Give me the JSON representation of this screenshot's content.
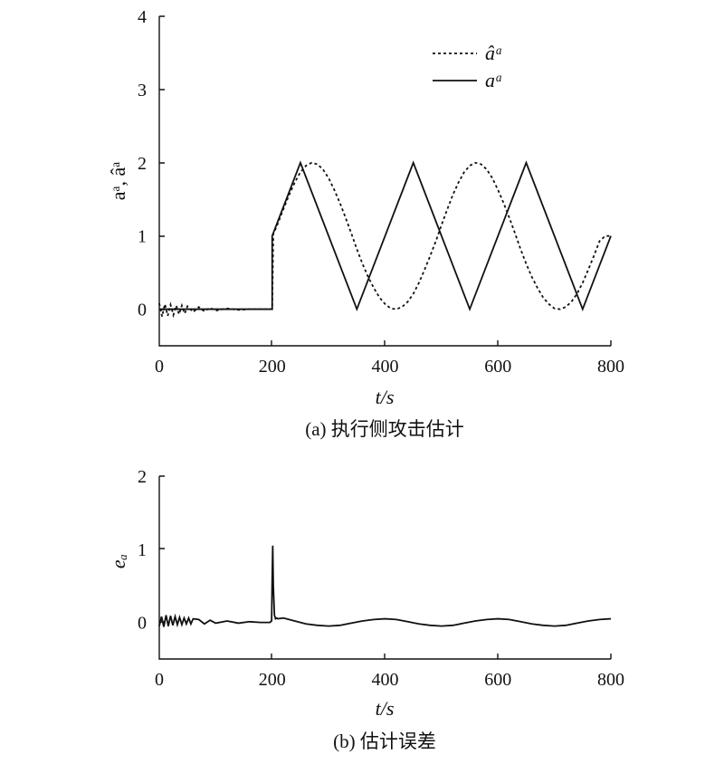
{
  "chart_data": [
    {
      "type": "line",
      "caption": "(a) 执行侧攻击估计",
      "xlabel": "t/s",
      "ylabel": "aᵃ, âᵃ",
      "xlim": [
        0,
        800
      ],
      "ylim": [
        -0.5,
        4
      ],
      "xticks": [
        "0",
        "200",
        "400",
        "600",
        "800"
      ],
      "yticks": [
        "0",
        "1",
        "2",
        "3",
        "4"
      ],
      "grid": false,
      "legend_position": "top-right",
      "series": [
        {
          "name": "âᵃ",
          "style": "dashed",
          "x": [
            0,
            5,
            10,
            15,
            20,
            25,
            30,
            35,
            40,
            45,
            50,
            60,
            70,
            80,
            90,
            100,
            120,
            140,
            160,
            180,
            199,
            200,
            202,
            205,
            210,
            220,
            230,
            240,
            250,
            260,
            270,
            280,
            290,
            300,
            310,
            320,
            330,
            340,
            350,
            360,
            370,
            380,
            390,
            400,
            410,
            420,
            430,
            440,
            450,
            460,
            470,
            480,
            490,
            500,
            510,
            520,
            530,
            540,
            550,
            560,
            570,
            580,
            590,
            600,
            610,
            620,
            630,
            640,
            650,
            660,
            670,
            680,
            690,
            700,
            710,
            720,
            730,
            740,
            750,
            760,
            770,
            780,
            790,
            800
          ],
          "y": [
            0.08,
            -0.1,
            0.07,
            -0.09,
            0.06,
            -0.08,
            0.05,
            -0.07,
            0.05,
            -0.06,
            0.04,
            -0.04,
            0.03,
            -0.03,
            0.02,
            -0.02,
            0.01,
            -0.01,
            0.0,
            0.0,
            0.0,
            0.0,
            1.03,
            1.08,
            1.17,
            1.37,
            1.56,
            1.73,
            1.87,
            1.96,
            2.0,
            1.98,
            1.91,
            1.79,
            1.63,
            1.45,
            1.25,
            1.04,
            0.82,
            0.62,
            0.44,
            0.29,
            0.16,
            0.07,
            0.01,
            0.0,
            0.03,
            0.1,
            0.21,
            0.36,
            0.54,
            0.73,
            0.93,
            1.15,
            1.36,
            1.56,
            1.73,
            1.87,
            1.96,
            2.0,
            1.98,
            1.91,
            1.79,
            1.63,
            1.45,
            1.25,
            1.04,
            0.82,
            0.62,
            0.44,
            0.29,
            0.16,
            0.07,
            0.01,
            0.0,
            0.03,
            0.1,
            0.21,
            0.36,
            0.54,
            0.73,
            0.93,
            1.0,
            1.0
          ]
        },
        {
          "name": "aᵃ",
          "style": "solid",
          "x": [
            0,
            200,
            200,
            250,
            300,
            350,
            400,
            450,
            500,
            550,
            600,
            650,
            700,
            750,
            800
          ],
          "y": [
            0,
            0,
            1,
            2,
            1,
            0,
            1,
            2,
            1,
            0,
            1,
            2,
            1,
            0,
            1
          ]
        }
      ]
    },
    {
      "type": "line",
      "caption": "(b) 估计误差",
      "xlabel": "t/s",
      "ylabel": "eₐ",
      "xlim": [
        0,
        800
      ],
      "ylim": [
        -0.5,
        2
      ],
      "xticks": [
        "0",
        "200",
        "400",
        "600",
        "800"
      ],
      "yticks": [
        "0",
        "1",
        "2"
      ],
      "grid": false,
      "series": [
        {
          "name": "eₐ",
          "style": "solid",
          "x": [
            0,
            4,
            8,
            12,
            16,
            20,
            24,
            28,
            32,
            36,
            40,
            44,
            48,
            52,
            56,
            60,
            70,
            80,
            90,
            100,
            120,
            140,
            160,
            180,
            196,
            199,
            200,
            201,
            202,
            204,
            206,
            208,
            210,
            220,
            240,
            260,
            280,
            300,
            320,
            340,
            360,
            380,
            400,
            420,
            440,
            460,
            480,
            500,
            520,
            540,
            560,
            580,
            600,
            620,
            640,
            660,
            680,
            700,
            720,
            740,
            760,
            780,
            800
          ],
          "y": [
            -0.05,
            0.08,
            -0.06,
            0.1,
            -0.05,
            0.09,
            -0.04,
            0.08,
            -0.03,
            0.07,
            -0.03,
            0.06,
            -0.02,
            0.06,
            -0.02,
            0.05,
            0.04,
            -0.02,
            0.03,
            -0.01,
            0.02,
            -0.01,
            0.01,
            0.0,
            0.0,
            0.02,
            0.6,
            1.05,
            0.5,
            0.1,
            0.05,
            0.06,
            0.05,
            0.06,
            0.02,
            -0.02,
            -0.04,
            -0.05,
            -0.04,
            -0.01,
            0.02,
            0.04,
            0.05,
            0.04,
            0.01,
            -0.02,
            -0.04,
            -0.05,
            -0.04,
            -0.01,
            0.02,
            0.04,
            0.05,
            0.04,
            0.01,
            -0.02,
            -0.04,
            -0.05,
            -0.04,
            -0.01,
            0.02,
            0.04,
            0.05
          ]
        }
      ]
    }
  ]
}
